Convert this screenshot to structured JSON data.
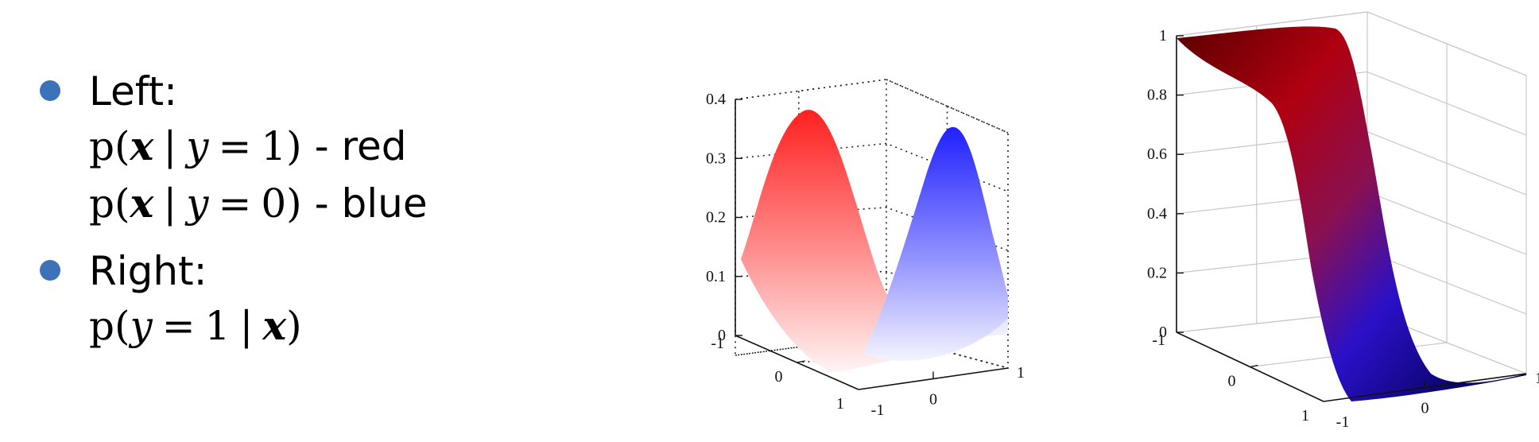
{
  "bullets": [
    {
      "label": "Left:",
      "lines": [
        {
          "prefix": "p(",
          "bvar": "x",
          "bar": "|",
          "var": "y",
          "eq": "=",
          "num": "1",
          "suffix": ")",
          "tail": " - red"
        },
        {
          "prefix": "p(",
          "bvar": "x",
          "bar": "|",
          "var": "y",
          "eq": "=",
          "num": "0",
          "suffix": ")",
          "tail": " - blue"
        }
      ]
    },
    {
      "label": "Right:",
      "formula": {
        "prefix": "p(",
        "var": "y",
        "eq": "=",
        "num": "1",
        "bar": "|",
        "bvar": "x",
        "suffix": ")"
      }
    }
  ],
  "colors": {
    "bullet": "#3B72B9",
    "red": "#FF2020",
    "blue": "#2020FF",
    "dark_red": "#5A0000",
    "dark_blue": "#00004A"
  },
  "chart_data": [
    {
      "type": "surface3d",
      "description_series": [
        {
          "name": "red",
          "peak": 0.4
        },
        {
          "name": "blue",
          "peak": 0.35
        }
      ],
      "x": [
        -1,
        0,
        1
      ],
      "y": [
        -1,
        0,
        1
      ],
      "z_ticks": [
        "0",
        "0.1",
        "0.2",
        "0.3",
        "0.4"
      ],
      "x_ticks": [
        "-1",
        "0",
        "1"
      ],
      "y_ticks": [
        "-1",
        "0",
        "1"
      ],
      "zlim": [
        0,
        0.4
      ],
      "grid": true,
      "grid_style": "dotted"
    },
    {
      "type": "surface3d",
      "x": [
        -1,
        0,
        1
      ],
      "y": [
        -1,
        0,
        1
      ],
      "z_ticks": [
        "0",
        "0.2",
        "0.4",
        "0.6",
        "0.8",
        "1"
      ],
      "x_ticks": [
        "-1",
        "0",
        "1"
      ],
      "y_ticks": [
        "-1",
        "0",
        "1"
      ],
      "zlim": [
        0,
        1
      ],
      "grid": true,
      "grid_style": "solid"
    }
  ]
}
